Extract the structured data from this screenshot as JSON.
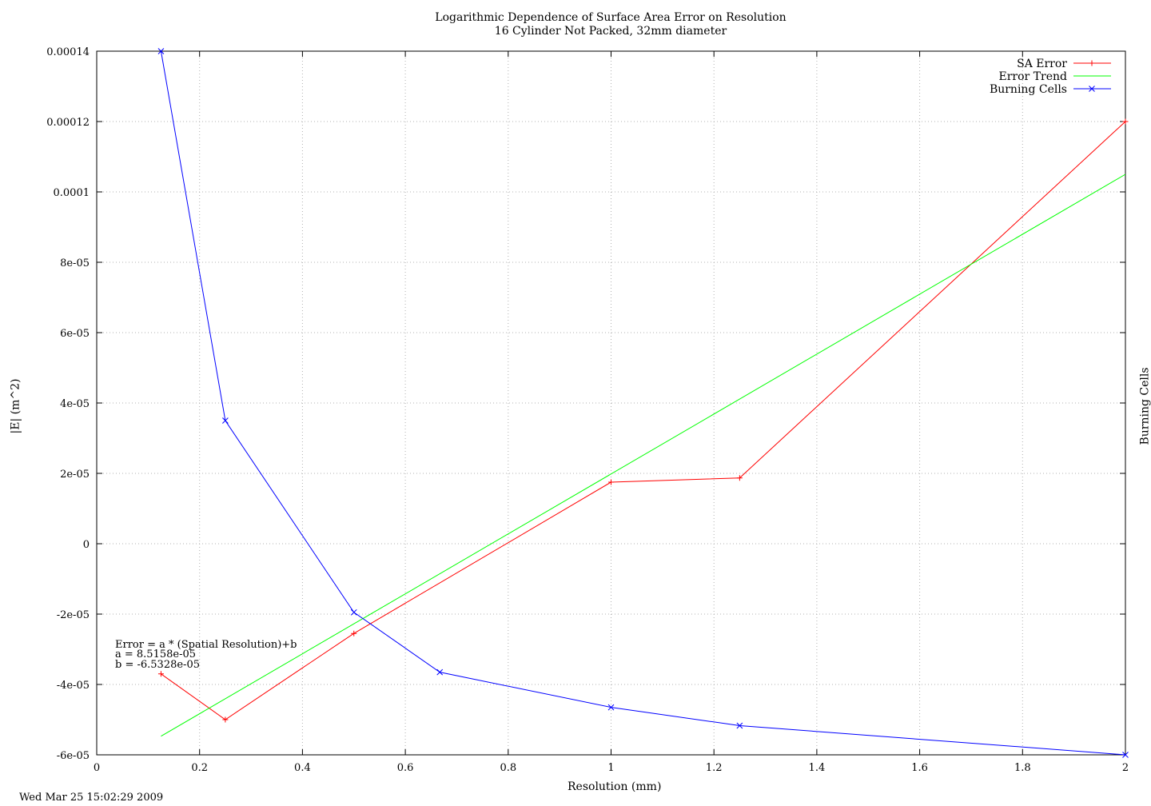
{
  "chart_data": {
    "type": "line",
    "title": "Logarithmic Dependence of Surface Area Error on Resolution",
    "subtitle": "16 Cylinder Not Packed, 32mm diameter",
    "xlabel": "Resolution (mm)",
    "ylabel": "|E| (m^2)",
    "y2label": "Burning Cells",
    "xlim": [
      0,
      2
    ],
    "ylim": [
      -6e-05,
      0.00014
    ],
    "x_ticks": [
      "0",
      "0.2",
      "0.4",
      "0.6",
      "0.8",
      "1",
      "1.2",
      "1.4",
      "1.6",
      "1.8",
      "2"
    ],
    "y_ticks": [
      "-6e-05",
      "-4e-05",
      "-2e-05",
      "0",
      "2e-05",
      "4e-05",
      "6e-05",
      "8e-05",
      "0.0001",
      "0.00012",
      "0.00014"
    ],
    "grid": true,
    "legend_position": "top-right",
    "series": [
      {
        "name": "SA Error",
        "color": "#ff0000",
        "marker": "+",
        "x": [
          0.125,
          0.25,
          0.5,
          1.0,
          1.25,
          2.0
        ],
        "y": [
          -3.7e-05,
          -5e-05,
          -2.55e-05,
          1.75e-05,
          1.87e-05,
          0.00012
        ]
      },
      {
        "name": "Error Trend",
        "color": "#00ff00",
        "marker": "none",
        "x": [
          0.125,
          2.0
        ],
        "y": [
          -5.47e-05,
          0.000105
        ]
      },
      {
        "name": "Burning Cells",
        "color": "#0000ff",
        "marker": "x",
        "x": [
          0.125,
          0.25,
          0.5,
          0.667,
          1.0,
          1.25,
          2.0
        ],
        "y": [
          0.00014,
          3.5e-05,
          -1.95e-05,
          -3.65e-05,
          -4.65e-05,
          -5.17e-05,
          -6e-05
        ]
      }
    ],
    "annotations": [
      "Error = a * (Spatial Resolution)+b",
      "a = 8.5158e-05",
      "b = -6.5328e-05"
    ]
  },
  "timestamp": "Wed Mar 25 15:02:29 2009"
}
